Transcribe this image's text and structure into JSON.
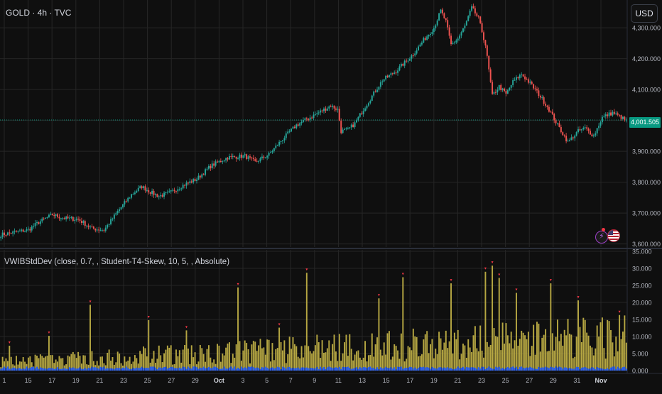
{
  "header": {
    "title": "GOLD · 4h · TVC",
    "currency_button": "USD"
  },
  "indicator": {
    "label": "VWIBStdDev (close, 0.7, , Student-T4-Skew, 10, 5, , Absolute)"
  },
  "last_price_label": "4,001.505",
  "icons": [
    "lightning-icon",
    "us-flag-icon"
  ],
  "colors": {
    "background": "#0f0f0f",
    "grid": "#262626",
    "up": "#26a69a",
    "down": "#ef5350",
    "volume_bar": "#b5a642",
    "volume_base": "#2962ff",
    "spike_marker": "#f23645",
    "last_price": "#089981"
  },
  "chart_data": [
    {
      "type": "candlestick",
      "title": "GOLD · 4h · TVC",
      "x_tick_labels": [
        "1",
        "15",
        "17",
        "19",
        "21",
        "23",
        "25",
        "27",
        "29",
        "Oct",
        "3",
        "5",
        "7",
        "9",
        "11",
        "13",
        "15",
        "17",
        "19",
        "21",
        "23",
        "25",
        "27",
        "29",
        "31",
        "Nov"
      ],
      "y_tick_labels": [
        "3,600.000",
        "3,700.000",
        "3,800.000",
        "3,900.000",
        "4,000.000",
        "4,100.000",
        "4,200.000",
        "4,300.000"
      ],
      "ylim": [
        3590,
        4390
      ],
      "last_price": 4001.505,
      "grid": true,
      "close_anchors": [
        [
          0,
          3630
        ],
        [
          8,
          3638
        ],
        [
          16,
          3646
        ],
        [
          22,
          3670
        ],
        [
          30,
          3695
        ],
        [
          37,
          3683
        ],
        [
          45,
          3680
        ],
        [
          53,
          3650
        ],
        [
          60,
          3645
        ],
        [
          68,
          3705
        ],
        [
          76,
          3760
        ],
        [
          82,
          3786
        ],
        [
          88,
          3765
        ],
        [
          92,
          3755
        ],
        [
          98,
          3765
        ],
        [
          106,
          3790
        ],
        [
          114,
          3810
        ],
        [
          122,
          3852
        ],
        [
          132,
          3880
        ],
        [
          142,
          3885
        ],
        [
          148,
          3865
        ],
        [
          156,
          3890
        ],
        [
          164,
          3940
        ],
        [
          172,
          3985
        ],
        [
          180,
          4010
        ],
        [
          188,
          4035
        ],
        [
          192,
          4048
        ],
        [
          196,
          4035
        ],
        [
          198,
          3965
        ],
        [
          202,
          3970
        ],
        [
          206,
          3990
        ],
        [
          212,
          4045
        ],
        [
          222,
          4130
        ],
        [
          230,
          4160
        ],
        [
          240,
          4215
        ],
        [
          246,
          4260
        ],
        [
          252,
          4300
        ],
        [
          256,
          4355
        ],
        [
          259,
          4320
        ],
        [
          262,
          4245
        ],
        [
          266,
          4265
        ],
        [
          270,
          4305
        ],
        [
          274,
          4365
        ],
        [
          278,
          4330
        ],
        [
          282,
          4245
        ],
        [
          286,
          4080
        ],
        [
          290,
          4110
        ],
        [
          294,
          4085
        ],
        [
          298,
          4125
        ],
        [
          303,
          4150
        ],
        [
          308,
          4120
        ],
        [
          313,
          4085
        ],
        [
          318,
          4045
        ],
        [
          324,
          3985
        ],
        [
          330,
          3930
        ],
        [
          336,
          3965
        ],
        [
          340,
          3975
        ],
        [
          345,
          3950
        ],
        [
          350,
          4010
        ],
        [
          356,
          4025
        ],
        [
          361,
          4010
        ],
        [
          364,
          3998
        ]
      ],
      "candle_count": 365
    },
    {
      "type": "bar",
      "title": "VWIBStdDev (close, 0.7, , Student-T4-Skew, 10, 5, , Absolute)",
      "y_tick_labels": [
        "0.000",
        "5.000",
        "10.000",
        "15.000",
        "20.000",
        "25.000",
        "30.000",
        "35.000"
      ],
      "ylim": [
        0,
        35
      ],
      "base_level": 5,
      "spike_bars": [
        [
          5,
          7.3
        ],
        [
          28,
          10.2
        ],
        [
          52,
          19.3
        ],
        [
          86,
          14.8
        ],
        [
          108,
          11.8
        ],
        [
          138,
          24.4
        ],
        [
          162,
          12.6
        ],
        [
          178,
          28.7
        ],
        [
          220,
          21.2
        ],
        [
          234,
          27.4
        ],
        [
          262,
          25.6
        ],
        [
          282,
          29.0
        ],
        [
          286,
          30.8
        ],
        [
          290,
          27.2
        ],
        [
          300,
          22.8
        ],
        [
          320,
          25.6
        ],
        [
          336,
          20.6
        ],
        [
          360,
          16.3
        ]
      ],
      "series_count": 365
    }
  ]
}
